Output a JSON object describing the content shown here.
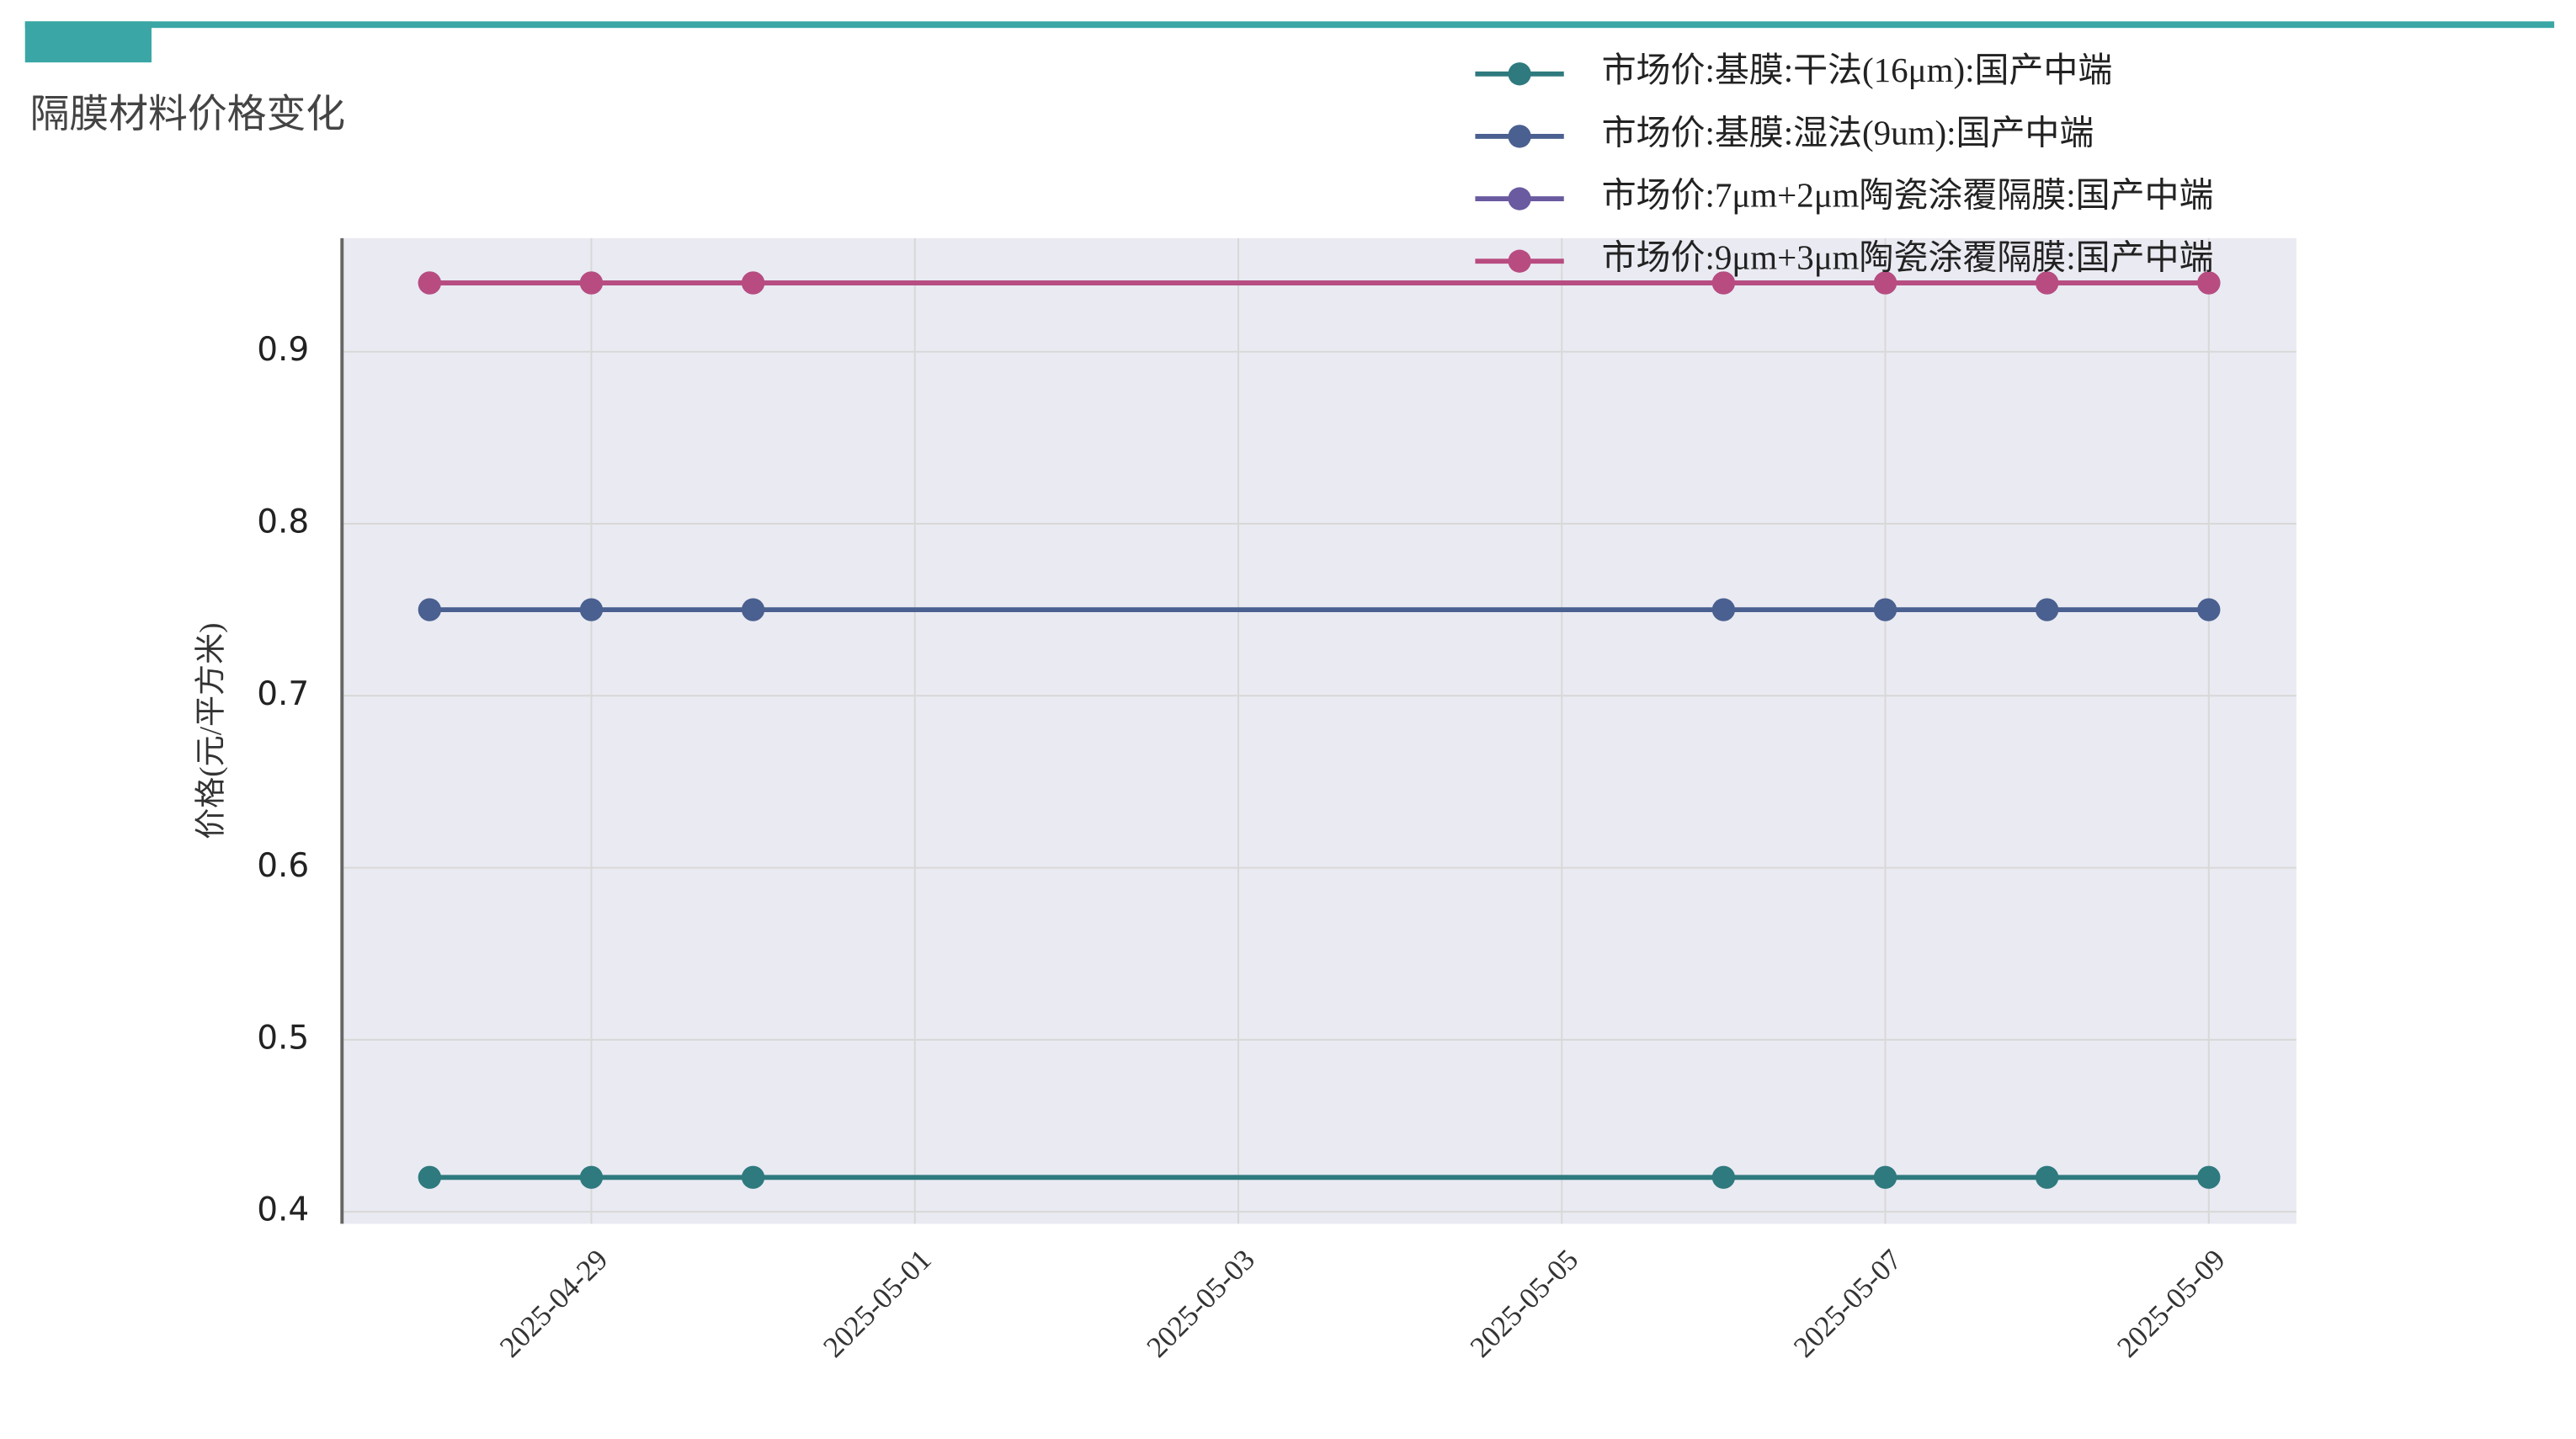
{
  "chart_data": {
    "type": "line",
    "title": "隔膜材料价格变化",
    "y_label": "价格(元/平方米)",
    "x": [
      "2025-04-28",
      "2025-04-29",
      "2025-04-30",
      "2025-05-06",
      "2025-05-07",
      "2025-05-08",
      "2025-05-09"
    ],
    "xlim": [
      "2025-04-27T11:00",
      "2025-05-09T13:00"
    ],
    "xticks": [
      "2025-04-29",
      "2025-05-01",
      "2025-05-03",
      "2025-05-05",
      "2025-05-07",
      "2025-05-09"
    ],
    "ylim": [
      0.393,
      0.966
    ],
    "yticks": [
      0.4,
      0.5,
      0.6,
      0.7,
      0.8,
      0.9
    ],
    "grid": true,
    "series": [
      {
        "name": "市场价:基膜:干法(16μm):国产中端",
        "color": "#2e7a7e",
        "values": [
          0.42,
          0.42,
          0.42,
          0.42,
          0.42,
          0.42,
          0.42
        ]
      },
      {
        "name": "市场价:基膜:湿法(9um):国产中端",
        "color": "#4a6090",
        "values": [
          0.75,
          0.75,
          0.75,
          0.75,
          0.75,
          0.75,
          0.75
        ]
      },
      {
        "name": "市场价:7μm+2μm陶瓷涂覆隔膜:国产中端",
        "color": "#6a5aa0",
        "values": [
          0.94,
          0.94,
          0.94,
          0.94,
          0.94,
          0.94,
          0.94
        ]
      },
      {
        "name": "市场价:9μm+3μm陶瓷涂覆隔膜:国产中端",
        "color": "#b84c80",
        "values": [
          0.94,
          0.94,
          0.94,
          0.94,
          0.94,
          0.94,
          0.94
        ]
      }
    ]
  }
}
